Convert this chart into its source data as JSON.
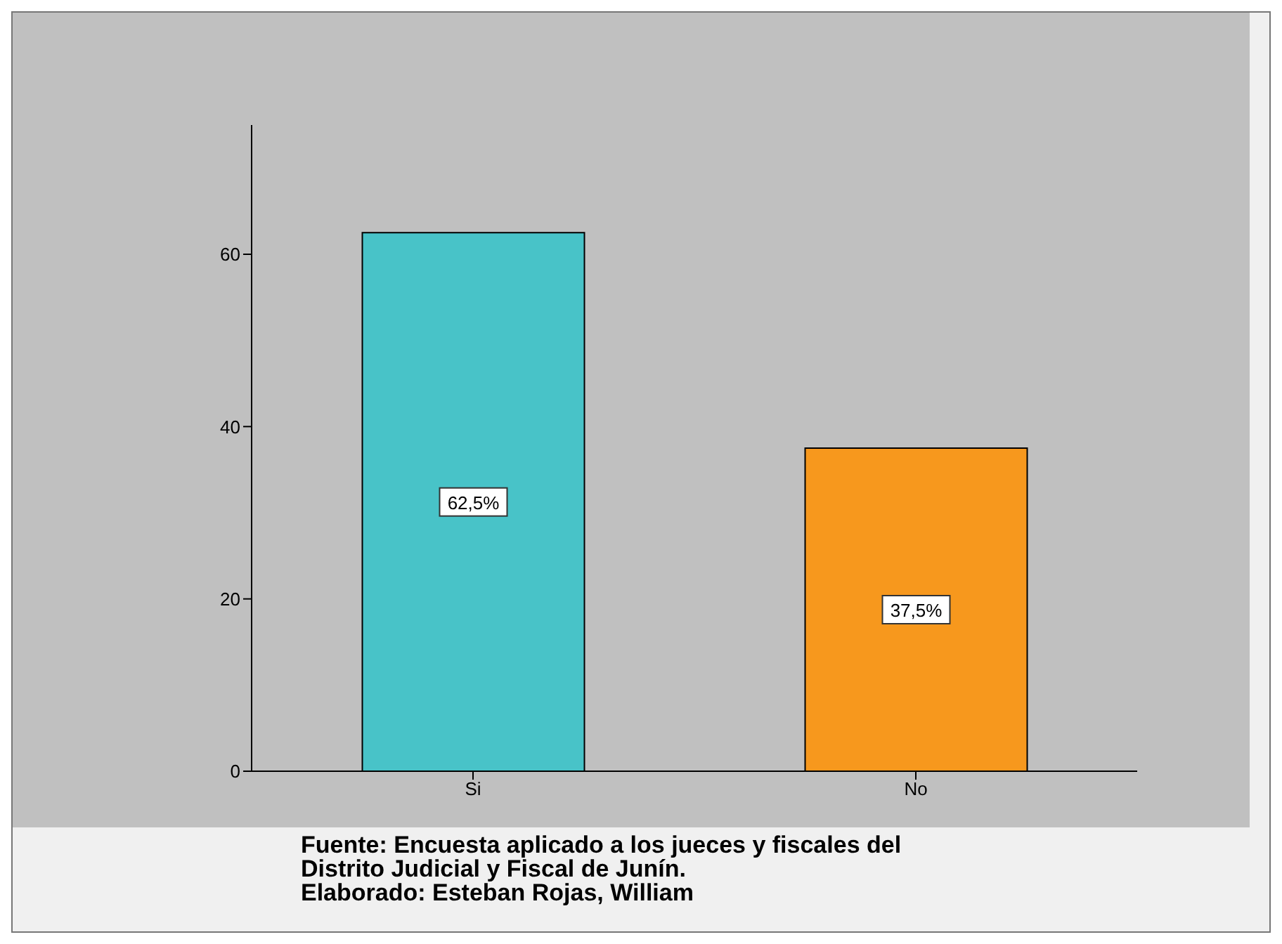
{
  "chart_data": {
    "type": "bar",
    "categories": [
      "Si",
      "No"
    ],
    "values": [
      62.5,
      37.5
    ],
    "colors": [
      "#48c3c8",
      "#f7981d"
    ],
    "value_labels": [
      "62,5%",
      "37,5%"
    ],
    "ylim": [
      0,
      75
    ],
    "yticks": [
      0,
      20,
      40,
      60
    ],
    "grid": false,
    "legend": false,
    "annotations": [
      "Fuente: Encuesta aplicado a los jueces y fiscales del",
      "Distrito Judicial y Fiscal de Junín.",
      "Elaborado: Esteban Rojas, William"
    ]
  }
}
